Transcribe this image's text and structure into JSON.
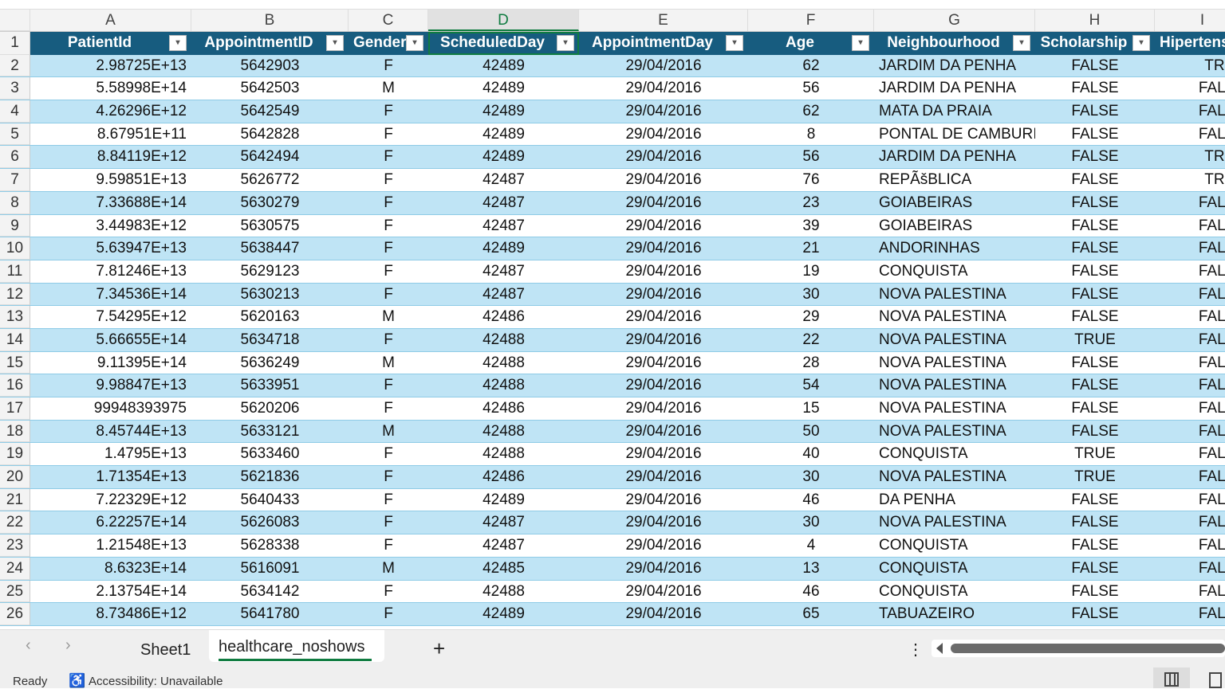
{
  "columns": [
    "A",
    "B",
    "C",
    "D",
    "E",
    "F",
    "G",
    "H",
    "I"
  ],
  "selected_column": "D",
  "headers": [
    "PatientId",
    "AppointmentID",
    "Gender",
    "ScheduledDay",
    "AppointmentDay",
    "Age",
    "Neighbourhood",
    "Scholarship",
    "Hipertension"
  ],
  "rows": [
    [
      "2.98725E+13",
      "5642903",
      "F",
      "42489",
      "29/04/2016",
      "62",
      "JARDIM DA PENHA",
      "FALSE",
      "TRUE"
    ],
    [
      "5.58998E+14",
      "5642503",
      "M",
      "42489",
      "29/04/2016",
      "56",
      "JARDIM DA PENHA",
      "FALSE",
      "FALSE"
    ],
    [
      "4.26296E+12",
      "5642549",
      "F",
      "42489",
      "29/04/2016",
      "62",
      "MATA DA PRAIA",
      "FALSE",
      "FALSE"
    ],
    [
      "8.67951E+11",
      "5642828",
      "F",
      "42489",
      "29/04/2016",
      "8",
      "PONTAL DE CAMBURI",
      "FALSE",
      "FALSE"
    ],
    [
      "8.84119E+12",
      "5642494",
      "F",
      "42489",
      "29/04/2016",
      "56",
      "JARDIM DA PENHA",
      "FALSE",
      "TRUE"
    ],
    [
      "9.59851E+13",
      "5626772",
      "F",
      "42487",
      "29/04/2016",
      "76",
      "REPÃšBLICA",
      "FALSE",
      "TRUE"
    ],
    [
      "7.33688E+14",
      "5630279",
      "F",
      "42487",
      "29/04/2016",
      "23",
      "GOIABEIRAS",
      "FALSE",
      "FALSE"
    ],
    [
      "3.44983E+12",
      "5630575",
      "F",
      "42487",
      "29/04/2016",
      "39",
      "GOIABEIRAS",
      "FALSE",
      "FALSE"
    ],
    [
      "5.63947E+13",
      "5638447",
      "F",
      "42489",
      "29/04/2016",
      "21",
      "ANDORINHAS",
      "FALSE",
      "FALSE"
    ],
    [
      "7.81246E+13",
      "5629123",
      "F",
      "42487",
      "29/04/2016",
      "19",
      "CONQUISTA",
      "FALSE",
      "FALSE"
    ],
    [
      "7.34536E+14",
      "5630213",
      "F",
      "42487",
      "29/04/2016",
      "30",
      "NOVA PALESTINA",
      "FALSE",
      "FALSE"
    ],
    [
      "7.54295E+12",
      "5620163",
      "M",
      "42486",
      "29/04/2016",
      "29",
      "NOVA PALESTINA",
      "FALSE",
      "FALSE"
    ],
    [
      "5.66655E+14",
      "5634718",
      "F",
      "42488",
      "29/04/2016",
      "22",
      "NOVA PALESTINA",
      "TRUE",
      "FALSE"
    ],
    [
      "9.11395E+14",
      "5636249",
      "M",
      "42488",
      "29/04/2016",
      "28",
      "NOVA PALESTINA",
      "FALSE",
      "FALSE"
    ],
    [
      "9.98847E+13",
      "5633951",
      "F",
      "42488",
      "29/04/2016",
      "54",
      "NOVA PALESTINA",
      "FALSE",
      "FALSE"
    ],
    [
      "99948393975",
      "5620206",
      "F",
      "42486",
      "29/04/2016",
      "15",
      "NOVA PALESTINA",
      "FALSE",
      "FALSE"
    ],
    [
      "8.45744E+13",
      "5633121",
      "M",
      "42488",
      "29/04/2016",
      "50",
      "NOVA PALESTINA",
      "FALSE",
      "FALSE"
    ],
    [
      "1.4795E+13",
      "5633460",
      "F",
      "42488",
      "29/04/2016",
      "40",
      "CONQUISTA",
      "TRUE",
      "FALSE"
    ],
    [
      "1.71354E+13",
      "5621836",
      "F",
      "42486",
      "29/04/2016",
      "30",
      "NOVA PALESTINA",
      "TRUE",
      "FALSE"
    ],
    [
      "7.22329E+12",
      "5640433",
      "F",
      "42489",
      "29/04/2016",
      "46",
      "DA PENHA",
      "FALSE",
      "FALSE"
    ],
    [
      "6.22257E+14",
      "5626083",
      "F",
      "42487",
      "29/04/2016",
      "30",
      "NOVA PALESTINA",
      "FALSE",
      "FALSE"
    ],
    [
      "1.21548E+13",
      "5628338",
      "F",
      "42487",
      "29/04/2016",
      "4",
      "CONQUISTA",
      "FALSE",
      "FALSE"
    ],
    [
      "8.6323E+14",
      "5616091",
      "M",
      "42485",
      "29/04/2016",
      "13",
      "CONQUISTA",
      "FALSE",
      "FALSE"
    ],
    [
      "2.13754E+14",
      "5634142",
      "F",
      "42488",
      "29/04/2016",
      "46",
      "CONQUISTA",
      "FALSE",
      "FALSE"
    ],
    [
      "8.73486E+12",
      "5641780",
      "F",
      "42489",
      "29/04/2016",
      "65",
      "TABUAZEIRO",
      "FALSE",
      "FALSE"
    ]
  ],
  "tabs": {
    "prev": "‹",
    "next": "›",
    "sheet1": "Sheet1",
    "active": "healthcare_noshows",
    "add": "+",
    "more": "⋮"
  },
  "status": {
    "ready": "Ready",
    "accessibility": "Accessibility: Unavailable"
  },
  "colors": {
    "header_bg": "#175c7f",
    "band": "#bfe4f5",
    "accent": "#107c41"
  }
}
